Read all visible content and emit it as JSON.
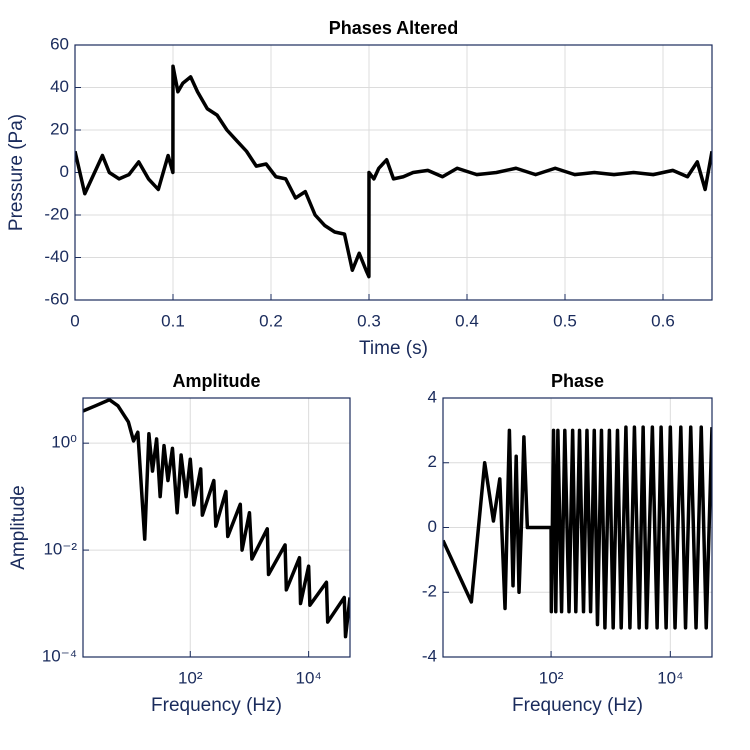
{
  "chart_data": [
    {
      "type": "line",
      "title": "Phases Altered",
      "xlabel": "Time (s)",
      "ylabel": "Pressure (Pa)",
      "xscale": "linear",
      "yscale": "linear",
      "grid": true,
      "color": "#000000",
      "xlim": [
        0,
        0.65
      ],
      "ylim": [
        -60,
        60
      ],
      "xticks": [
        0,
        0.1,
        0.2,
        0.3,
        0.4,
        0.5,
        0.6
      ],
      "yticks": [
        -60,
        -40,
        -20,
        0,
        20,
        40,
        60
      ],
      "x": [
        0,
        0.01,
        0.02,
        0.028,
        0.035,
        0.045,
        0.055,
        0.065,
        0.075,
        0.085,
        0.095,
        0.0999,
        0.1,
        0.105,
        0.11,
        0.118,
        0.125,
        0.135,
        0.145,
        0.155,
        0.165,
        0.175,
        0.185,
        0.195,
        0.205,
        0.215,
        0.225,
        0.235,
        0.245,
        0.255,
        0.265,
        0.275,
        0.283,
        0.29,
        0.297,
        0.2999,
        0.3,
        0.305,
        0.31,
        0.318,
        0.325,
        0.335,
        0.345,
        0.36,
        0.375,
        0.39,
        0.41,
        0.43,
        0.45,
        0.47,
        0.49,
        0.51,
        0.53,
        0.55,
        0.57,
        0.59,
        0.61,
        0.625,
        0.635,
        0.643,
        0.65
      ],
      "values": [
        10,
        -10,
        0,
        8,
        0,
        -3,
        -1,
        5,
        -3,
        -8,
        8,
        0,
        50,
        38,
        42,
        45,
        38,
        30,
        27,
        20,
        15,
        10,
        3,
        4,
        -2,
        -3,
        -12,
        -9,
        -20,
        -25,
        -28,
        -29,
        -46,
        -38,
        -46,
        -49,
        0,
        -3,
        2,
        6,
        -3,
        -2,
        0,
        1,
        -2,
        2,
        -1,
        0,
        2,
        -1,
        2,
        -1,
        0,
        -1,
        0,
        -1,
        1,
        -2,
        5,
        -8,
        10
      ]
    },
    {
      "type": "line",
      "title": "Amplitude",
      "xlabel": "Frequency (Hz)",
      "ylabel": "Amplitude",
      "xscale": "log",
      "yscale": "log",
      "grid": true,
      "color": "#000000",
      "xlim": [
        1.54,
        50000
      ],
      "ylim": [
        0.0001,
        7
      ],
      "xticks": [
        {
          "value": 100,
          "label": "10²"
        },
        {
          "value": 10000,
          "label": "10⁴"
        }
      ],
      "yticks": [
        {
          "value": 0.0001,
          "label": "10⁻⁴"
        },
        {
          "value": 0.01,
          "label": "10⁻²"
        },
        {
          "value": 1,
          "label": "10⁰"
        }
      ],
      "x": [
        1.54,
        2.5,
        4.3,
        6,
        9,
        11,
        13,
        17,
        20,
        23,
        27,
        31,
        36,
        42,
        50,
        60,
        70,
        85,
        100,
        115,
        150,
        160,
        250,
        270,
        400,
        430,
        700,
        750,
        1000,
        1100,
        2000,
        2100,
        4000,
        4200,
        7000,
        7300,
        10000,
        10500,
        20000,
        21000,
        40000,
        42000,
        50000
      ],
      "values": [
        4,
        5,
        6.5,
        5,
        2.5,
        1.1,
        1.6,
        0.016,
        1.5,
        0.3,
        1.2,
        0.1,
        0.9,
        0.2,
        0.8,
        0.05,
        0.6,
        0.1,
        0.5,
        0.07,
        0.33,
        0.045,
        0.2,
        0.028,
        0.125,
        0.018,
        0.072,
        0.01,
        0.05,
        0.0068,
        0.025,
        0.0035,
        0.0125,
        0.0018,
        0.0072,
        0.001,
        0.005,
        0.00093,
        0.0025,
        0.00045,
        0.0013,
        0.00024,
        0.0013
      ]
    },
    {
      "type": "line",
      "title": "Phase",
      "xlabel": "Frequency (Hz)",
      "xscale": "log",
      "yscale": "linear",
      "grid": true,
      "color": "#000000",
      "xlim": [
        1.54,
        50000
      ],
      "ylim": [
        -4,
        4
      ],
      "xticks": [
        {
          "value": 100,
          "label": "10²"
        },
        {
          "value": 10000,
          "label": "10⁴"
        }
      ],
      "yticks": [
        -4,
        -2,
        0,
        2,
        4
      ],
      "x": [
        1.54,
        4.6,
        7.7,
        10.8,
        13.8,
        16.9,
        20,
        23,
        26,
        29,
        32,
        35,
        40,
        100,
        101,
        110,
        120,
        130,
        150,
        170,
        200,
        230,
        260,
        300,
        350,
        400,
        460,
        530,
        600,
        700,
        800,
        950,
        1100,
        1300,
        1500,
        1800,
        2100,
        2500,
        3000,
        3500,
        4000,
        5000,
        6000,
        7000,
        8500,
        10000,
        12000,
        15000,
        18000,
        22000,
        27000,
        33000,
        40000,
        50000
      ],
      "values": [
        -0.4,
        -2.3,
        2.0,
        0.2,
        1.5,
        -2.5,
        3.0,
        -1.8,
        2.2,
        -2.0,
        0.2,
        2.8,
        0,
        0,
        -2.6,
        3.0,
        -2.6,
        3.0,
        -2.6,
        3.0,
        -2.6,
        3.0,
        -2.6,
        3.0,
        -2.6,
        3.0,
        -2.6,
        3.0,
        -3.0,
        3.0,
        -3.1,
        3.0,
        -3.1,
        3.0,
        -3.1,
        3.1,
        -3.1,
        3.1,
        -3.1,
        3.1,
        -3.1,
        3.1,
        -3.1,
        3.1,
        -3.1,
        3.1,
        -3.1,
        3.1,
        -3.1,
        3.1,
        -3.1,
        3.1,
        -3.1,
        3.1
      ]
    }
  ]
}
